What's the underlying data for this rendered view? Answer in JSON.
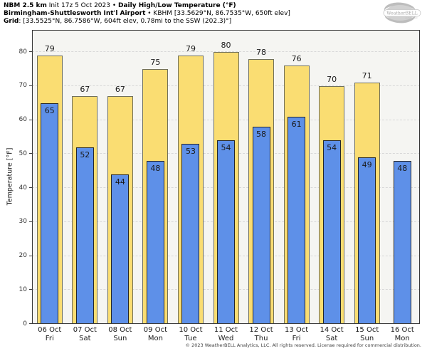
{
  "header": {
    "line1": {
      "model": "NBM 2.5 km",
      "init": " Init 17z 5 Oct 2023 • ",
      "product": "Daily High/Low Temperature (°F)"
    },
    "line2": {
      "station": "Birmingham-Shuttlesworth Int'l Airport",
      "details": " • KBHM [33.5629°N, 86.7535°W, 650ft elev]"
    },
    "line3": {
      "label": "Grid",
      "details": ": [33.5525°N, 86.7586°W, 604ft elev, 0.78mi to the SSW (202.3)°]"
    }
  },
  "logo": {
    "brand": "WeatherBELL",
    "sub": "Analytics LLC"
  },
  "chart_data": {
    "type": "bar",
    "title": "Daily High/Low Temperature (°F)",
    "ylabel": "Temperature [°F]",
    "ylim": [
      0,
      86.5
    ],
    "yticks": [
      0,
      10,
      20,
      30,
      40,
      50,
      60,
      70,
      80
    ],
    "grid": "horizontal dashed",
    "legend_position": "none",
    "categories": [
      "06 Oct",
      "07 Oct",
      "08 Oct",
      "09 Oct",
      "10 Oct",
      "11 Oct",
      "12 Oct",
      "13 Oct",
      "14 Oct",
      "15 Oct",
      "16 Oct"
    ],
    "days": [
      "Fri",
      "Sat",
      "Sun",
      "Mon",
      "Tue",
      "Wed",
      "Thu",
      "Fri",
      "Sat",
      "Sun",
      "Mon"
    ],
    "series": [
      {
        "name": "High",
        "color": "#FADD72",
        "values": [
          79,
          67,
          67,
          75,
          79,
          80,
          78,
          76,
          70,
          71,
          null
        ]
      },
      {
        "name": "Low",
        "color": "#5E90E8",
        "values": [
          65,
          52,
          44,
          48,
          53,
          54,
          58,
          61,
          54,
          49,
          48
        ]
      }
    ]
  },
  "footer": {
    "copyright": "© 2023 WeatherBELL Analytics, LLC. All rights reserved. License required for commercial distribution."
  },
  "colors": {
    "high": "#FADD72",
    "low": "#5E90E8",
    "plot_bg": "#F5F5F2",
    "grid": "#D8D8D8",
    "frame": "#3A3A3A"
  }
}
